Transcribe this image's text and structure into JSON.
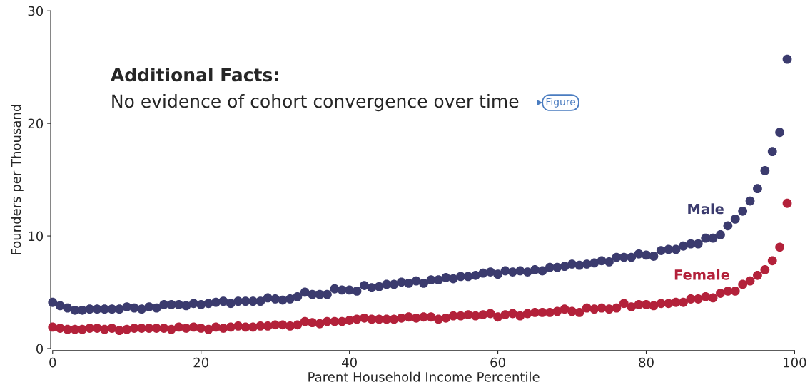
{
  "chart_data": {
    "type": "scatter",
    "title": "Additional Facts:",
    "subtitle": "No evidence of cohort convergence over time",
    "annotations": [
      "Figure"
    ],
    "xlabel": "Parent Household Income Percentile",
    "ylabel": "Founders per Thousand",
    "x": [
      0,
      1,
      2,
      3,
      4,
      5,
      6,
      7,
      8,
      9,
      10,
      11,
      12,
      13,
      14,
      15,
      16,
      17,
      18,
      19,
      20,
      21,
      22,
      23,
      24,
      25,
      26,
      27,
      28,
      29,
      30,
      31,
      32,
      33,
      34,
      35,
      36,
      37,
      38,
      39,
      40,
      41,
      42,
      43,
      44,
      45,
      46,
      47,
      48,
      49,
      50,
      51,
      52,
      53,
      54,
      55,
      56,
      57,
      58,
      59,
      60,
      61,
      62,
      63,
      64,
      65,
      66,
      67,
      68,
      69,
      70,
      71,
      72,
      73,
      74,
      75,
      76,
      77,
      78,
      79,
      80,
      81,
      82,
      83,
      84,
      85,
      86,
      87,
      88,
      89,
      90,
      91,
      92,
      93,
      94,
      95,
      96,
      97,
      98,
      99
    ],
    "series": [
      {
        "name": "Male",
        "color": "#3b3b6e",
        "values": [
          4.1,
          3.8,
          3.6,
          3.4,
          3.4,
          3.5,
          3.5,
          3.5,
          3.5,
          3.5,
          3.7,
          3.6,
          3.5,
          3.7,
          3.6,
          3.9,
          3.9,
          3.9,
          3.8,
          4.0,
          3.9,
          4.0,
          4.1,
          4.2,
          4.0,
          4.2,
          4.2,
          4.2,
          4.2,
          4.5,
          4.4,
          4.3,
          4.4,
          4.6,
          5.0,
          4.8,
          4.8,
          4.8,
          5.3,
          5.2,
          5.2,
          5.1,
          5.6,
          5.4,
          5.5,
          5.7,
          5.7,
          5.9,
          5.8,
          6.0,
          5.8,
          6.1,
          6.1,
          6.3,
          6.2,
          6.4,
          6.4,
          6.5,
          6.7,
          6.8,
          6.6,
          6.9,
          6.8,
          6.9,
          6.8,
          7.0,
          6.9,
          7.2,
          7.2,
          7.3,
          7.5,
          7.4,
          7.5,
          7.6,
          7.8,
          7.7,
          8.1,
          8.1,
          8.1,
          8.4,
          8.3,
          8.2,
          8.7,
          8.8,
          8.8,
          9.1,
          9.3,
          9.3,
          9.8,
          9.8,
          10.1,
          10.9,
          11.5,
          12.2,
          13.1,
          14.2,
          15.8,
          17.5,
          19.2,
          25.7
        ]
      },
      {
        "name": "Female",
        "color": "#b3213a",
        "values": [
          1.9,
          1.8,
          1.7,
          1.7,
          1.7,
          1.8,
          1.8,
          1.7,
          1.8,
          1.6,
          1.7,
          1.8,
          1.8,
          1.8,
          1.8,
          1.8,
          1.7,
          1.9,
          1.8,
          1.9,
          1.8,
          1.7,
          1.9,
          1.8,
          1.9,
          2.0,
          1.9,
          1.9,
          2.0,
          2.0,
          2.1,
          2.1,
          2.0,
          2.1,
          2.4,
          2.3,
          2.2,
          2.4,
          2.4,
          2.4,
          2.5,
          2.6,
          2.7,
          2.6,
          2.6,
          2.6,
          2.6,
          2.7,
          2.8,
          2.7,
          2.8,
          2.8,
          2.6,
          2.7,
          2.9,
          2.9,
          3.0,
          2.9,
          3.0,
          3.1,
          2.8,
          3.0,
          3.1,
          2.9,
          3.1,
          3.2,
          3.2,
          3.2,
          3.3,
          3.5,
          3.3,
          3.2,
          3.6,
          3.5,
          3.6,
          3.5,
          3.6,
          4.0,
          3.7,
          3.9,
          3.9,
          3.8,
          4.0,
          4.0,
          4.1,
          4.1,
          4.4,
          4.4,
          4.6,
          4.5,
          4.9,
          5.1,
          5.1,
          5.7,
          6.0,
          6.5,
          7.0,
          7.8,
          9.0,
          12.9
        ]
      }
    ],
    "marker": "circle",
    "xlim": [
      0,
      100
    ],
    "ylim": [
      0,
      30
    ],
    "xticks": [
      0,
      20,
      40,
      60,
      80,
      100
    ],
    "yticks": [
      0,
      10,
      20,
      30
    ],
    "grid": false,
    "legend": false
  }
}
